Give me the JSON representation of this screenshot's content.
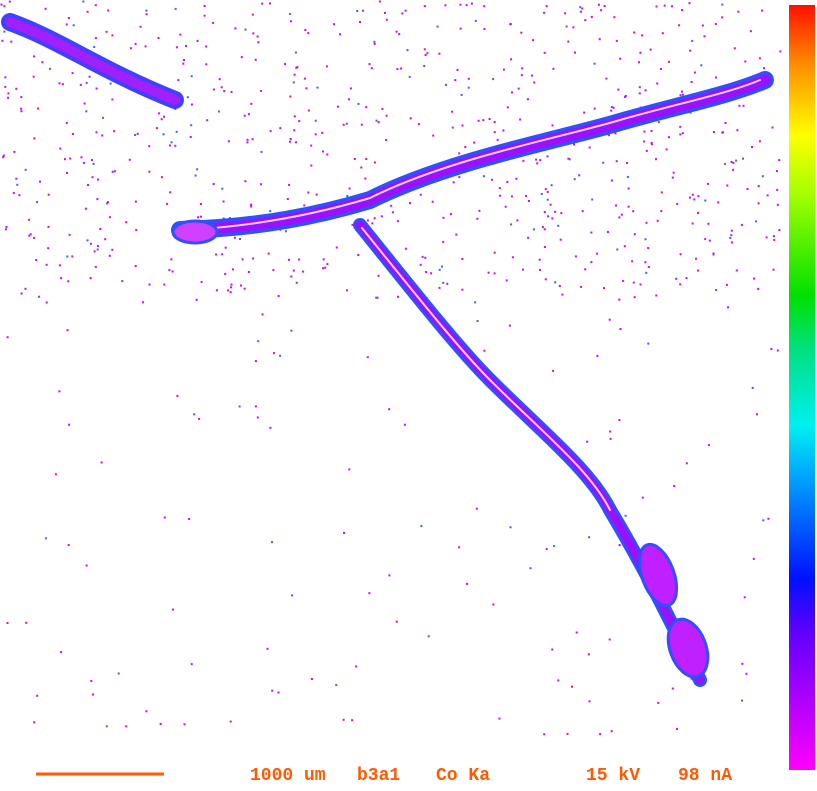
{
  "footer": {
    "scale": "1000 um",
    "sample": "b3a1",
    "element": "Co Ka",
    "voltage": "15 kV",
    "current": "98 nA"
  }
}
